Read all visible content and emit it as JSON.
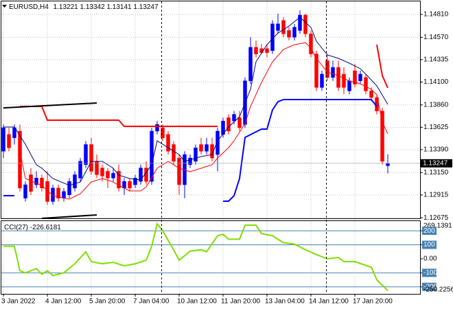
{
  "chart_data": [
    {
      "type": "candlestick",
      "title": "EURUSD,H4",
      "categories": [
        "3 Jan 2022",
        null,
        null,
        null,
        null,
        null,
        null,
        null,
        "4 Jan 12:00",
        null,
        null,
        null,
        null,
        null,
        null,
        null,
        "5 Jan 20:00",
        null,
        null,
        null,
        null,
        null,
        null,
        null,
        "7 Jan 04:00",
        null,
        null,
        null,
        null,
        null,
        null,
        null,
        "10 Jan 12:00",
        null,
        null,
        null,
        null,
        null,
        null,
        null,
        "11 Jan 20:00",
        null,
        null,
        null,
        null,
        null,
        null,
        null,
        "13 Jan 04:00",
        null,
        null,
        null,
        null,
        null,
        null,
        null,
        "14 Jan 12:00",
        null,
        null,
        null,
        null,
        null,
        null,
        null,
        "17 Jan 20:00",
        null,
        null,
        null,
        null,
        null,
        null
      ],
      "open": [
        1.13374,
        1.1355,
        1.13515,
        1.13585,
        1.12881,
        1.13127,
        1.13022,
        1.13092,
        1.13057,
        1.12846,
        1.12987,
        1.12881,
        1.12916,
        1.12987,
        1.13092,
        1.13233,
        1.13444,
        1.13268,
        1.13198,
        1.13163,
        1.13092,
        1.13163,
        1.12987,
        1.13057,
        1.13022,
        1.13057,
        1.13198,
        1.13057,
        1.13585,
        1.1362,
        1.1355,
        1.13444,
        1.13303,
        1.13022,
        1.13233,
        1.13268,
        1.13444,
        1.13374,
        1.13444,
        1.13339,
        1.1355,
        1.13726,
        1.13691,
        1.13726,
        1.13655,
        1.14113,
        1.14465,
        1.14451,
        1.14451,
        1.1443,
        1.14641,
        1.14747,
        1.14641,
        1.14571,
        1.14641,
        1.14803,
        1.14606,
        1.14395,
        1.14043,
        1.14324,
        1.14148,
        1.14254,
        1.14183,
        1.14007,
        1.14219,
        1.14113,
        1.14148,
        1.14007,
        1.13937,
        1.13796,
        1.13221
      ],
      "high": [
        1.13655,
        1.1362,
        1.13655,
        1.13655,
        1.13057,
        1.13198,
        1.13163,
        1.13127,
        1.13163,
        1.13022,
        1.13022,
        1.12987,
        1.13092,
        1.13163,
        1.13303,
        1.1348,
        1.13515,
        1.13339,
        1.13233,
        1.13198,
        1.13198,
        1.13233,
        1.13092,
        1.13092,
        1.13127,
        1.13233,
        1.13268,
        1.1362,
        1.13691,
        1.13655,
        1.13585,
        1.1348,
        1.13339,
        1.13374,
        1.13339,
        1.13444,
        1.13515,
        1.13515,
        1.13515,
        1.1362,
        1.13726,
        1.13761,
        1.13796,
        1.13796,
        1.14148,
        1.14571,
        1.14536,
        1.14501,
        1.14501,
        1.14747,
        1.14817,
        1.14782,
        1.14676,
        1.14711,
        1.14852,
        1.14817,
        1.14641,
        1.1443,
        1.14219,
        1.14395,
        1.14324,
        1.14324,
        1.14254,
        1.14148,
        1.14289,
        1.14219,
        1.14183,
        1.14043,
        1.13972,
        1.13831,
        1.13342
      ],
      "low": [
        1.13303,
        1.13374,
        1.13444,
        1.12951,
        1.12846,
        1.12916,
        1.12987,
        1.12951,
        1.12811,
        1.12811,
        1.12846,
        1.12846,
        1.12881,
        1.12951,
        1.13057,
        1.13198,
        1.13127,
        1.13092,
        1.13057,
        1.12987,
        1.13057,
        1.12951,
        1.12916,
        1.12951,
        1.12987,
        1.13022,
        1.13022,
        1.13022,
        1.1355,
        1.1348,
        1.13339,
        1.13233,
        1.12916,
        1.12881,
        1.13198,
        1.13233,
        1.13339,
        1.13339,
        1.13268,
        1.13163,
        1.13515,
        1.1355,
        1.13655,
        1.13585,
        1.1362,
        1.14078,
        1.14359,
        1.14395,
        1.14359,
        1.14395,
        1.14606,
        1.14571,
        1.14536,
        1.14536,
        1.14606,
        1.14571,
        1.14359,
        1.14007,
        1.14007,
        1.14113,
        1.14113,
        1.14007,
        1.13972,
        1.13972,
        1.14043,
        1.14078,
        1.13972,
        1.13902,
        1.13761,
        1.13233,
        1.13141
      ],
      "close": [
        1.1362,
        1.13409,
        1.1362,
        1.12987,
        1.13022,
        1.12951,
        1.13092,
        1.12987,
        1.12846,
        1.12987,
        1.12881,
        1.12951,
        1.13057,
        1.13127,
        1.13268,
        1.13444,
        1.13163,
        1.13127,
        1.13113,
        1.13092,
        1.13142,
        1.12987,
        1.13057,
        1.12987,
        1.13092,
        1.13198,
        1.13057,
        1.13585,
        1.13655,
        1.13515,
        1.13374,
        1.13268,
        1.13022,
        1.13339,
        1.13303,
        1.13409,
        1.13374,
        1.13444,
        1.13303,
        1.13585,
        1.13691,
        1.13585,
        1.13761,
        1.1362,
        1.14113,
        1.14465,
        1.14395,
        1.14409,
        1.14409,
        1.14711,
        1.14711,
        1.14606,
        1.14571,
        1.14676,
        1.14803,
        1.14606,
        1.14395,
        1.14043,
        1.14183,
        1.14148,
        1.14254,
        1.14043,
        1.14043,
        1.14113,
        1.14078,
        1.14183,
        1.14007,
        1.13937,
        1.13796,
        1.13268,
        1.13247
      ],
      "up_color": "#0000ff",
      "down_color": "#ff0000",
      "ylim": [
        1.12669,
        1.14947
      ],
      "yticks": [
        {
          "value": 1.1481,
          "label": "1.14810"
        },
        {
          "value": 1.1457,
          "label": "1.14570"
        },
        1.14335,
        {
          "value": 1.141,
          "label": "1.14100"
        },
        {
          "value": 1.1386,
          "label": "1.13860"
        },
        1.13625,
        {
          "value": 1.1339,
          "label": "1.13390"
        },
        {
          "value": 1.1315,
          "label": "1.13150"
        },
        1.12915,
        1.12675
      ],
      "grid": true,
      "overlays": [
        {
          "color": "#000080",
          "width": 1,
          "x": [
            0,
            2,
            4,
            6,
            7,
            9,
            12,
            14,
            16,
            18,
            20,
            21,
            23,
            25,
            27,
            28,
            30,
            32,
            33,
            36,
            38,
            39,
            41,
            43,
            45,
            46,
            48,
            50,
            52,
            54,
            56,
            57,
            59,
            61,
            63,
            65,
            66,
            68,
            70
          ],
          "y": [
            1.13628,
            1.13628,
            1.13447,
            1.13231,
            1.13195,
            1.13087,
            1.13015,
            1.13051,
            1.13267,
            1.13267,
            1.13195,
            1.13123,
            1.13087,
            1.13072,
            1.13231,
            1.13483,
            1.13411,
            1.13339,
            1.13267,
            1.13318,
            1.13339,
            1.13483,
            1.13628,
            1.13736,
            1.14024,
            1.14313,
            1.14493,
            1.14615,
            1.14687,
            1.14781,
            1.14673,
            1.14529,
            1.14385,
            1.14349,
            1.14298,
            1.1424,
            1.14183,
            1.1406,
            1.13866
          ]
        },
        {
          "color": "#ff0000",
          "width": 1,
          "x": [
            3,
            4,
            7,
            9,
            12,
            14,
            16,
            18,
            20,
            21,
            23,
            25,
            26,
            28,
            30,
            32,
            34,
            36,
            38,
            39,
            41,
            42,
            44,
            45,
            47,
            49,
            51,
            53,
            55,
            56,
            57,
            59,
            61,
            63,
            65,
            67,
            68,
            69,
            70
          ],
          "y": [
            1.13375,
            1.13087,
            1.13015,
            1.12907,
            1.12871,
            1.12928,
            1.13051,
            1.13087,
            1.13051,
            1.13015,
            1.12957,
            1.12957,
            1.13,
            1.13195,
            1.13267,
            1.13195,
            1.13159,
            1.13195,
            1.13231,
            1.13303,
            1.13411,
            1.13483,
            1.13664,
            1.13844,
            1.14096,
            1.14313,
            1.14442,
            1.14493,
            1.14514,
            1.14457,
            1.14349,
            1.14204,
            1.14168,
            1.14111,
            1.14082,
            1.14024,
            1.13966,
            1.13678,
            1.13556
          ]
        },
        {
          "color": "#ff0000",
          "width": 2,
          "x": [
            68,
            69,
            70
          ],
          "y": [
            1.14493,
            1.14168,
            1.14039
          ]
        },
        {
          "color": "#0000ff",
          "width": 2,
          "x": [
            0,
            2,
            3,
            40,
            41,
            42,
            43,
            44,
            46,
            47,
            48,
            49,
            50,
            51,
            67,
            68
          ],
          "y": [
            1.12907,
            1.12907,
            null,
            1.12849,
            1.12849,
            1.12907,
            1.13087,
            1.13519,
            1.13577,
            1.13606,
            1.13606,
            1.13808,
            1.13894,
            1.13916,
            1.13916,
            1.13844
          ]
        },
        {
          "color": "#ff0000",
          "width": 2,
          "x": [
            3,
            7,
            8,
            21,
            22,
            39
          ],
          "y": [
            1.13844,
            1.13844,
            1.137,
            1.137,
            1.13635,
            1.13635
          ]
        },
        {
          "color": "#000000",
          "width": 2,
          "x": [
            0,
            17
          ],
          "y": [
            1.13829,
            1.1388
          ]
        },
        {
          "color": "#000000",
          "width": 2,
          "x": [
            7,
            17
          ],
          "y": [
            1.12669,
            1.12705
          ]
        }
      ]
    },
    {
      "type": "line",
      "title": "CCI(27)",
      "x": [
        0,
        2,
        3,
        4,
        6,
        7,
        8,
        9,
        11,
        13,
        15,
        16,
        18,
        20,
        22,
        24,
        26,
        27,
        28,
        29,
        31,
        32,
        34,
        36,
        37,
        39,
        40,
        41,
        43,
        44,
        46,
        47,
        49,
        51,
        53,
        55,
        57,
        59,
        61,
        62,
        64,
        67,
        68,
        70
      ],
      "values": [
        90,
        90,
        -85,
        -100,
        -70,
        -110,
        -85,
        -120,
        -100,
        -35,
        50,
        -20,
        -35,
        -25,
        -50,
        -35,
        -10,
        90,
        250,
        200,
        65,
        -10,
        55,
        65,
        50,
        165,
        175,
        140,
        140,
        240,
        240,
        180,
        165,
        115,
        105,
        65,
        30,
        0,
        10,
        -20,
        -20,
        -60,
        -150,
        -226.6181
      ],
      "color": "#7ce000",
      "ylim": [
        -250.2256,
        269.1391
      ],
      "yticks": [
        200,
        100,
        {
          "value": 0,
          "label": "0.00"
        },
        -100,
        -200
      ],
      "levels": [
        200,
        100,
        -100,
        -200
      ],
      "level_color": "#4682b4"
    }
  ]
}
